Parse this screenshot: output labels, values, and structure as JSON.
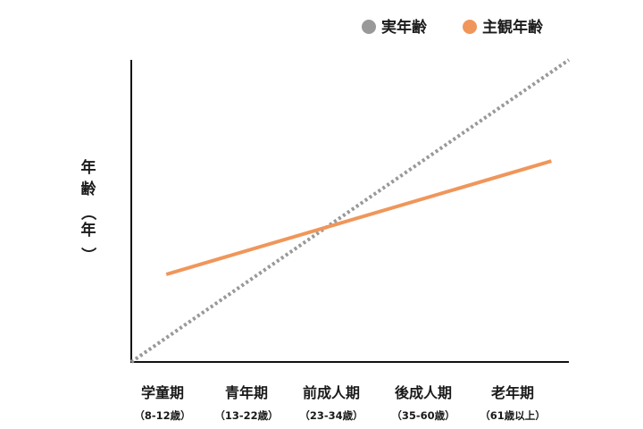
{
  "chart_data": {
    "type": "line",
    "title": "",
    "xlabel": "",
    "ylabel": "年齢（年）",
    "ylabel_chars": [
      "年",
      "齢",
      "（",
      "年",
      "）"
    ],
    "categories": [
      {
        "label": "学童期",
        "sub": "（8-12歳）"
      },
      {
        "label": "青年期",
        "sub": "（13-22歳）"
      },
      {
        "label": "前成人期",
        "sub": "（23-34歳）"
      },
      {
        "label": "後成人期",
        "sub": "（35-60歳）"
      },
      {
        "label": "老年期",
        "sub": "（61歳以上）"
      }
    ],
    "x_range": [
      0,
      1
    ],
    "y_range": [
      0,
      1
    ],
    "grid": false,
    "legend_position": "top-right",
    "series": [
      {
        "name": "実年齢",
        "color": "#999999",
        "style": "dotted",
        "points": [
          [
            0,
            0
          ],
          [
            1,
            1
          ]
        ]
      },
      {
        "name": "主観年齢",
        "color": "#f0965a",
        "style": "solid",
        "points": [
          [
            0.08,
            0.29
          ],
          [
            0.96,
            0.665
          ]
        ]
      }
    ]
  }
}
